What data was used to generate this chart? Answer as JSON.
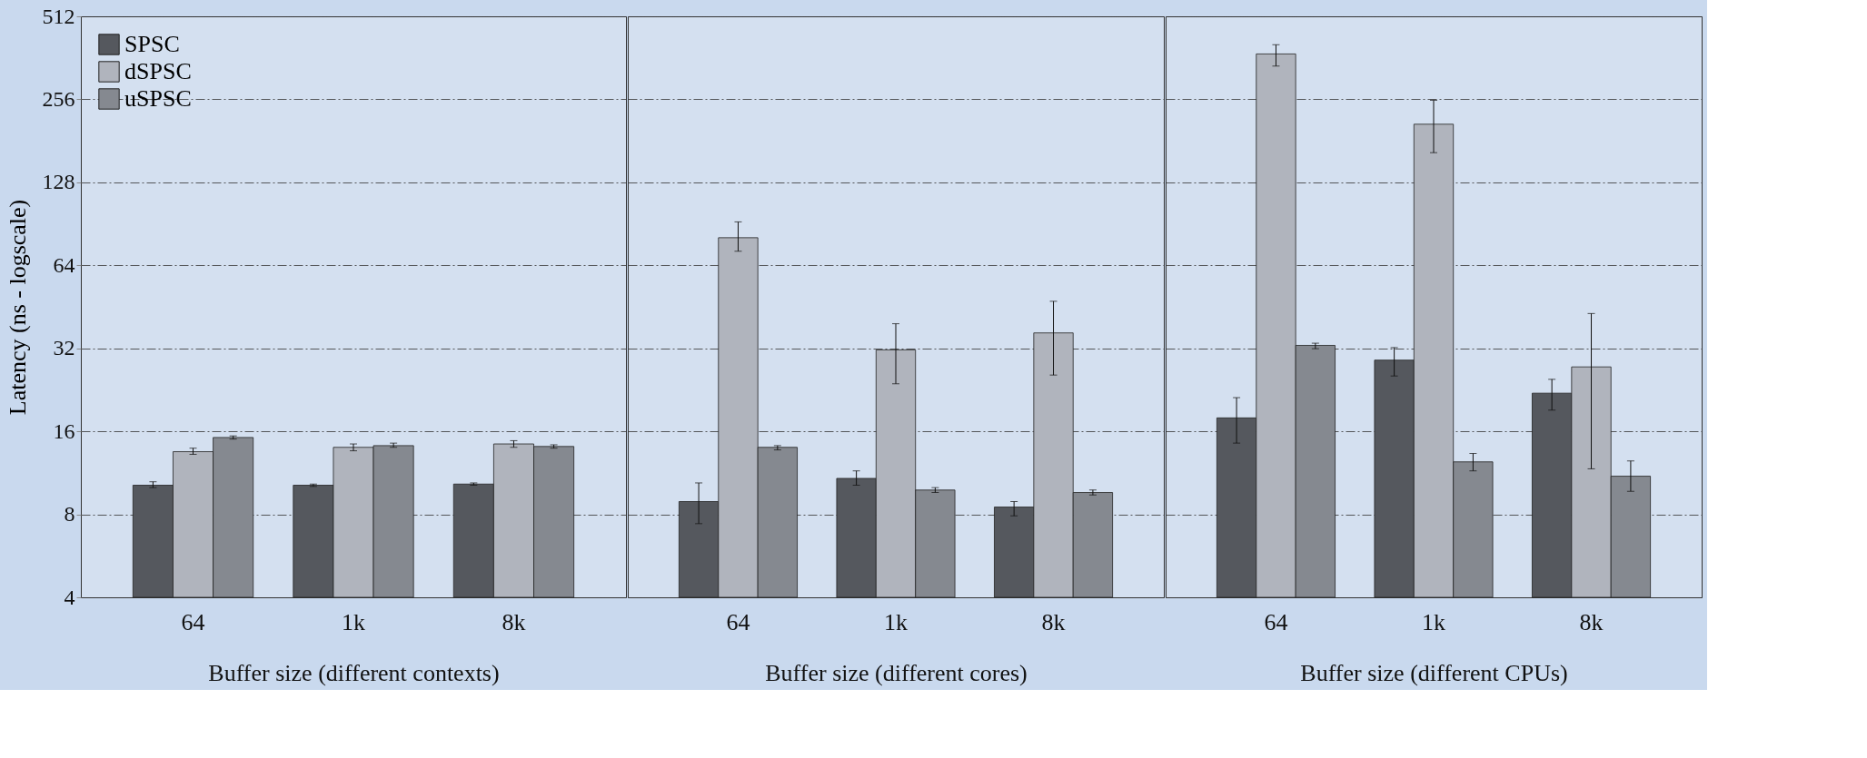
{
  "chart_data": [
    {
      "type": "bar",
      "ylabel": "Latency (ns - logscale)",
      "xlabel": "Buffer size (different contexts)",
      "categories": [
        "64",
        "1k",
        "8k"
      ],
      "log": "y",
      "ylim": [
        4,
        512
      ],
      "yticks": [
        4,
        8,
        16,
        32,
        64,
        128,
        256,
        512
      ],
      "grid": "y",
      "legend": "top left",
      "series": [
        {
          "name": "SPSC",
          "color": "#55585e",
          "values": [
            10.2,
            10.2,
            10.3
          ],
          "errors": [
            [
              10.0,
              10.5
            ],
            [
              10.1,
              10.3
            ],
            [
              10.2,
              10.4
            ]
          ]
        },
        {
          "name": "dSPSC",
          "color": "#b0b4bd",
          "values": [
            13.5,
            14.0,
            14.4
          ],
          "errors": [
            [
              13.2,
              13.9
            ],
            [
              13.6,
              14.4
            ],
            [
              14.0,
              14.8
            ]
          ]
        },
        {
          "name": "uSPSC",
          "color": "#858990",
          "values": [
            15.2,
            14.2,
            14.1
          ],
          "errors": [
            [
              15.0,
              15.4
            ],
            [
              14.0,
              14.5
            ],
            [
              13.9,
              14.3
            ]
          ]
        }
      ]
    },
    {
      "type": "bar",
      "xlabel": "Buffer size (different cores)",
      "categories": [
        "64",
        "1k",
        "8k"
      ],
      "log": "y",
      "ylim": [
        4,
        512
      ],
      "yticks": [
        4,
        8,
        16,
        32,
        64,
        128,
        256,
        512
      ],
      "grid": "y",
      "tick_labels": "x",
      "series": [
        {
          "color": "#55585e",
          "values": [
            8.9,
            10.8,
            8.5
          ],
          "errors": [
            [
              7.4,
              10.4
            ],
            [
              10.2,
              11.5
            ],
            [
              7.9,
              8.9
            ]
          ]
        },
        {
          "color": "#b0b4bd",
          "values": [
            80.6,
            31.6,
            36.4
          ],
          "errors": [
            [
              72,
              92
            ],
            [
              23.8,
              39.3
            ],
            [
              25.6,
              47.4
            ]
          ]
        },
        {
          "color": "#858990",
          "values": [
            14.0,
            9.8,
            9.6
          ],
          "errors": [
            [
              13.7,
              14.2
            ],
            [
              9.6,
              10.0
            ],
            [
              9.4,
              9.8
            ]
          ]
        }
      ]
    },
    {
      "type": "bar",
      "xlabel": "Buffer size (different CPUs)",
      "categories": [
        "64",
        "1k",
        "8k"
      ],
      "log": "y",
      "ylim": [
        4,
        512
      ],
      "yticks": [
        4,
        8,
        16,
        32,
        64,
        128,
        256,
        512
      ],
      "grid": "y",
      "tick_labels": "x",
      "series": [
        {
          "color": "#55585e",
          "values": [
            17.9,
            29,
            22
          ],
          "errors": [
            [
              14.5,
              21.2
            ],
            [
              25.4,
              32.2
            ],
            [
              19.1,
              24.7
            ]
          ]
        },
        {
          "color": "#b0b4bd",
          "values": [
            374,
            208,
            27.4
          ],
          "errors": [
            [
              338,
              404
            ],
            [
              164,
              254
            ],
            [
              11.7,
              42.8
            ]
          ]
        },
        {
          "color": "#858990",
          "values": [
            32.8,
            12.4,
            11.0
          ],
          "errors": [
            [
              31.9,
              33.4
            ],
            [
              11.5,
              13.3
            ],
            [
              9.7,
              12.5
            ]
          ]
        }
      ]
    }
  ]
}
